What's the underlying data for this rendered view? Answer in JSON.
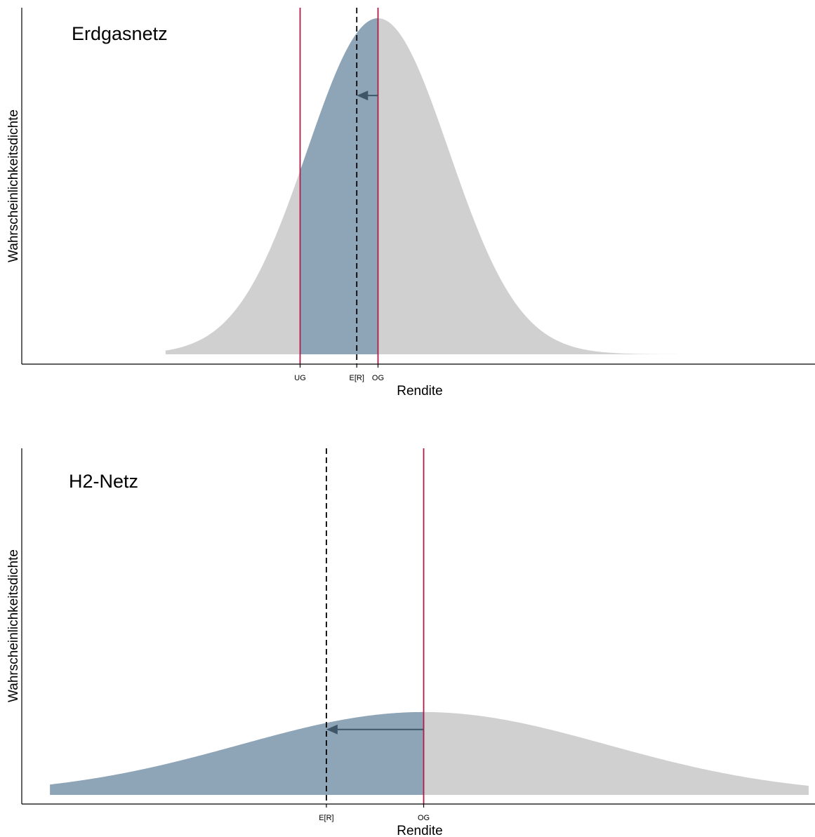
{
  "colors": {
    "density": "#d0d0d0",
    "shaded": "#8ea5b8",
    "bound_line": "#b01c48",
    "expected_line": "#000000",
    "arrow": "#3e5668",
    "axis": "#000000"
  },
  "chart_data": [
    {
      "type": "area",
      "title": "Erdgasnetz",
      "xlabel": "Rendite",
      "ylabel": "Wahrscheinlichkeitsdichte",
      "grid": false,
      "distribution": "normal",
      "mean": 0.3,
      "sd": 1.0,
      "xlim": [
        -4.73,
        6.47
      ],
      "curve_x_range": [
        -2.7,
        4.8
      ],
      "ylim": [
        0,
        1.045
      ],
      "markers": [
        {
          "label": "UG",
          "x": -0.8,
          "style": "solid"
        },
        {
          "label": "E[R]",
          "x": 0.0,
          "style": "dashed"
        },
        {
          "label": "OG",
          "x": 0.3,
          "style": "solid"
        }
      ],
      "shaded_range": [
        -0.8,
        0.3
      ],
      "arrow": {
        "from": 0.3,
        "to": 0.0,
        "y": 0.77
      }
    },
    {
      "type": "area",
      "title": "H2-Netz",
      "xlabel": "Rendite",
      "ylabel": "Wahrscheinlichkeitsdichte",
      "grid": false,
      "distribution": "normal",
      "mean": 0.3,
      "sd": 2.6,
      "xlim": [
        -5.4,
        5.85
      ],
      "curve_x_range": [
        -5.0,
        5.76
      ],
      "ylim": [
        0,
        1.045
      ],
      "markers": [
        {
          "label": "E[R]",
          "x": -1.08,
          "style": "dashed"
        },
        {
          "label": "OG",
          "x": 0.3,
          "style": "solid"
        }
      ],
      "shaded_range": [
        -5.0,
        0.3
      ],
      "arrow": {
        "from": 0.3,
        "to": -1.08,
        "y": 0.79
      }
    }
  ]
}
